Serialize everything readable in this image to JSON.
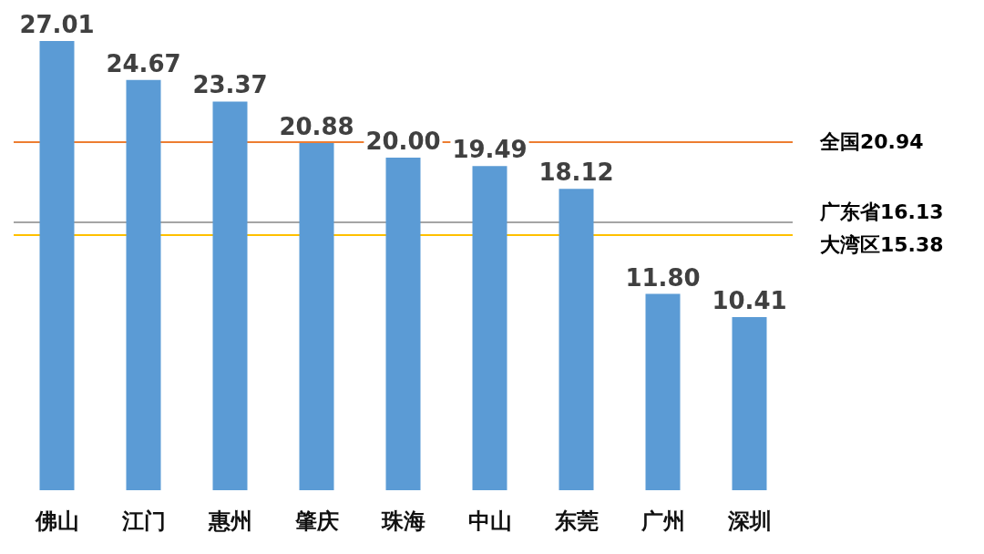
{
  "chart_data": {
    "type": "bar",
    "categories": [
      "佛山",
      "江门",
      "惠州",
      "肇庆",
      "珠海",
      "中山",
      "东莞",
      "广州",
      "深圳"
    ],
    "values": [
      27.01,
      24.67,
      23.37,
      20.88,
      20.0,
      19.49,
      18.12,
      11.8,
      10.41
    ],
    "value_labels": [
      "27.01",
      "24.67",
      "23.37",
      "20.88",
      "20.00",
      "19.49",
      "18.12",
      "11.80",
      "10.41"
    ],
    "color": "#5b9bd5",
    "ref_lines": [
      {
        "axis": "y",
        "value": 20.94,
        "label": "全国20.94",
        "color": "#ed7d31"
      },
      {
        "axis": "y",
        "value": 16.13,
        "label": "广东省16.13",
        "color": "#a5a5a5"
      },
      {
        "axis": "y",
        "value": 15.38,
        "label": "大湾区15.38",
        "color": "#ffc000"
      }
    ]
  }
}
